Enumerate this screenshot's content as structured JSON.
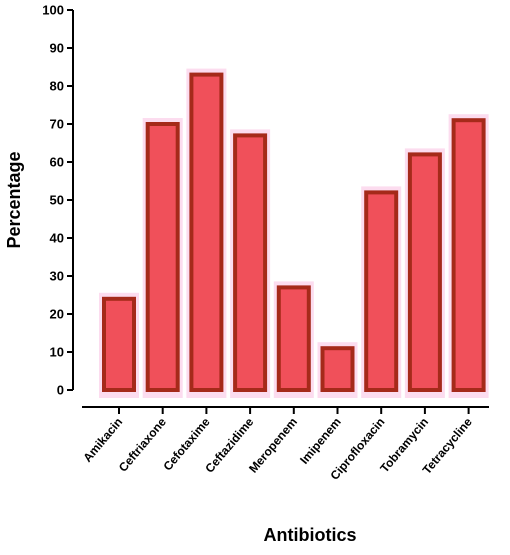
{
  "chart_data": {
    "type": "bar",
    "title": "",
    "xlabel": "Antibiotics",
    "ylabel": "Percentage",
    "ylim": [
      0,
      100
    ],
    "y_ticks": [
      0,
      10,
      20,
      30,
      40,
      50,
      60,
      70,
      80,
      90,
      100
    ],
    "grid": false,
    "categories": [
      "Amikacin",
      "Ceftriaxone",
      "Cefotaxime",
      "Ceftazidime",
      "Meropenem",
      "Imipenem",
      "Ciprofloxacin",
      "Tobramycin",
      "Tetracycline"
    ],
    "values": [
      24,
      70,
      83,
      67,
      27,
      11,
      52,
      62,
      71
    ],
    "colors": {
      "bar_fill": "#f0505a",
      "bar_border": "#a52a1a",
      "bar_glow": "#fcd6ec",
      "axis": "#000000"
    }
  }
}
